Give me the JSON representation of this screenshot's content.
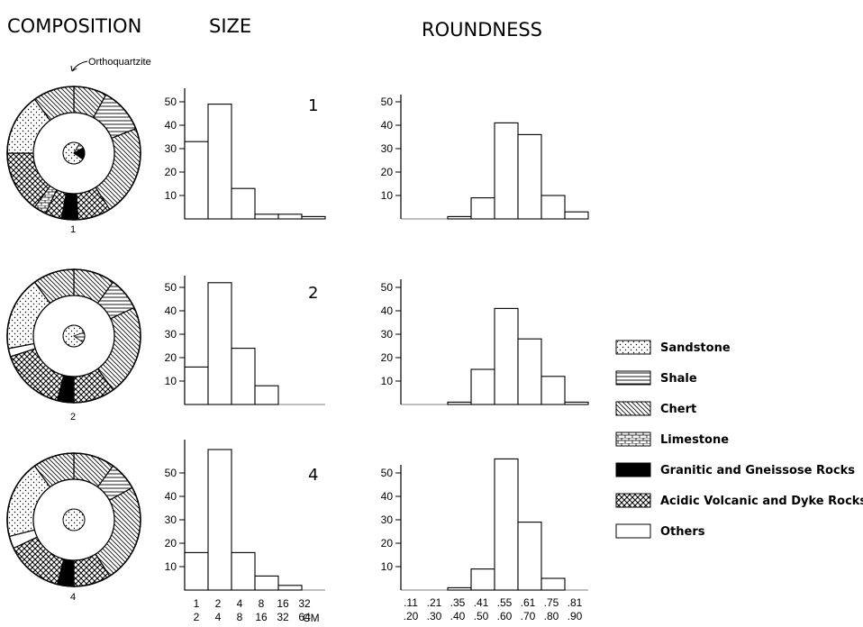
{
  "headers": {
    "composition": "COMPOSITION",
    "size": "SIZE",
    "roundness": "ROUNDNESS"
  },
  "annotation": "Orthoquartzite",
  "size_unit": "CM",
  "size_ticks": [
    {
      "top": "1",
      "bottom": "2"
    },
    {
      "top": "2",
      "bottom": "4"
    },
    {
      "top": "4",
      "bottom": "8"
    },
    {
      "top": "8",
      "bottom": "16"
    },
    {
      "top": "16",
      "bottom": "32"
    },
    {
      "top": "32",
      "bottom": "64"
    }
  ],
  "roundness_ticks": [
    {
      "top": ".11",
      "bottom": ".20"
    },
    {
      "top": ".21",
      "bottom": ".30"
    },
    {
      "top": ".35",
      "bottom": ".40"
    },
    {
      "top": ".41",
      "bottom": ".50"
    },
    {
      "top": ".55",
      "bottom": ".60"
    },
    {
      "top": ".61",
      "bottom": ".70"
    },
    {
      "top": ".75",
      "bottom": ".80"
    },
    {
      "top": ".81",
      "bottom": ".90"
    }
  ],
  "legend": [
    {
      "key": "sandstone",
      "label": "Sandstone"
    },
    {
      "key": "shale",
      "label": "Shale"
    },
    {
      "key": "chert",
      "label": "Chert"
    },
    {
      "key": "limestone",
      "label": "Limestone"
    },
    {
      "key": "granitic",
      "label": "Granitic and Gneissose Rocks"
    },
    {
      "key": "volcanic",
      "label": "Acidic Volcanic and Dyke Rocks"
    },
    {
      "key": "others",
      "label": "Others"
    }
  ],
  "chart_data": [
    {
      "type": "pie",
      "sample": "1",
      "outer": [
        {
          "key": "chert",
          "value": 8
        },
        {
          "key": "shale",
          "value": 11
        },
        {
          "key": "chert",
          "value": 22
        },
        {
          "key": "volcanic",
          "value": 8
        },
        {
          "key": "granitic",
          "value": 4
        },
        {
          "key": "volcanic",
          "value": 4
        },
        {
          "key": "limestone",
          "value": 3
        },
        {
          "key": "volcanic",
          "value": 15
        },
        {
          "key": "sandstone",
          "value": 15
        },
        {
          "key": "chert",
          "value": 10
        }
      ],
      "inner": [
        {
          "key": "sandstone",
          "value": 74
        },
        {
          "key": "shale",
          "value": 8
        },
        {
          "key": "granitic",
          "value": 18
        }
      ]
    },
    {
      "type": "bar",
      "metric": "size",
      "sample": "1",
      "ylim": [
        0,
        55
      ],
      "yticks": [
        "10",
        "20",
        "30",
        "40",
        "50"
      ],
      "values": [
        33,
        49,
        13,
        2,
        2,
        1
      ]
    },
    {
      "type": "bar",
      "metric": "roundness",
      "sample": "1",
      "ylim": [
        0,
        55
      ],
      "yticks": [
        "10",
        "20",
        "30",
        "40",
        "50"
      ],
      "values": [
        0,
        0,
        1,
        9,
        41,
        36,
        10,
        3
      ]
    },
    {
      "type": "pie",
      "sample": "2",
      "outer": [
        {
          "key": "chert",
          "value": 10
        },
        {
          "key": "shale",
          "value": 8
        },
        {
          "key": "chert",
          "value": 22
        },
        {
          "key": "volcanic",
          "value": 10
        },
        {
          "key": "granitic",
          "value": 4
        },
        {
          "key": "volcanic",
          "value": 16
        },
        {
          "key": "others",
          "value": 2
        },
        {
          "key": "sandstone",
          "value": 18
        },
        {
          "key": "chert",
          "value": 10
        }
      ],
      "inner": [
        {
          "key": "sandstone",
          "value": 85
        },
        {
          "key": "shale",
          "value": 15
        }
      ]
    },
    {
      "type": "bar",
      "metric": "size",
      "sample": "2",
      "ylim": [
        0,
        55
      ],
      "yticks": [
        "10",
        "20",
        "30",
        "40",
        "50"
      ],
      "values": [
        16,
        52,
        24,
        8,
        0,
        0
      ]
    },
    {
      "type": "bar",
      "metric": "roundness",
      "sample": "2",
      "ylim": [
        0,
        55
      ],
      "yticks": [
        "10",
        "20",
        "30",
        "40",
        "50"
      ],
      "values": [
        0,
        0,
        1,
        15,
        41,
        28,
        12,
        1
      ]
    },
    {
      "type": "pie",
      "sample": "4",
      "outer": [
        {
          "key": "chert",
          "value": 10
        },
        {
          "key": "shale",
          "value": 7
        },
        {
          "key": "chert",
          "value": 24
        },
        {
          "key": "volcanic",
          "value": 9
        },
        {
          "key": "granitic",
          "value": 4
        },
        {
          "key": "volcanic",
          "value": 14
        },
        {
          "key": "others",
          "value": 3
        },
        {
          "key": "sandstone",
          "value": 19
        },
        {
          "key": "chert",
          "value": 10
        }
      ],
      "inner": [
        {
          "key": "sandstone",
          "value": 100
        }
      ]
    },
    {
      "type": "bar",
      "metric": "size",
      "sample": "4",
      "ylim": [
        0,
        60
      ],
      "yticks": [
        "10",
        "20",
        "30",
        "40",
        "50"
      ],
      "values": [
        16,
        60,
        16,
        6,
        2,
        0
      ]
    },
    {
      "type": "bar",
      "metric": "roundness",
      "sample": "4",
      "ylim": [
        0,
        60
      ],
      "yticks": [
        "10",
        "20",
        "30",
        "40",
        "50"
      ],
      "values": [
        0,
        0,
        1,
        9,
        56,
        29,
        5,
        0
      ]
    }
  ]
}
